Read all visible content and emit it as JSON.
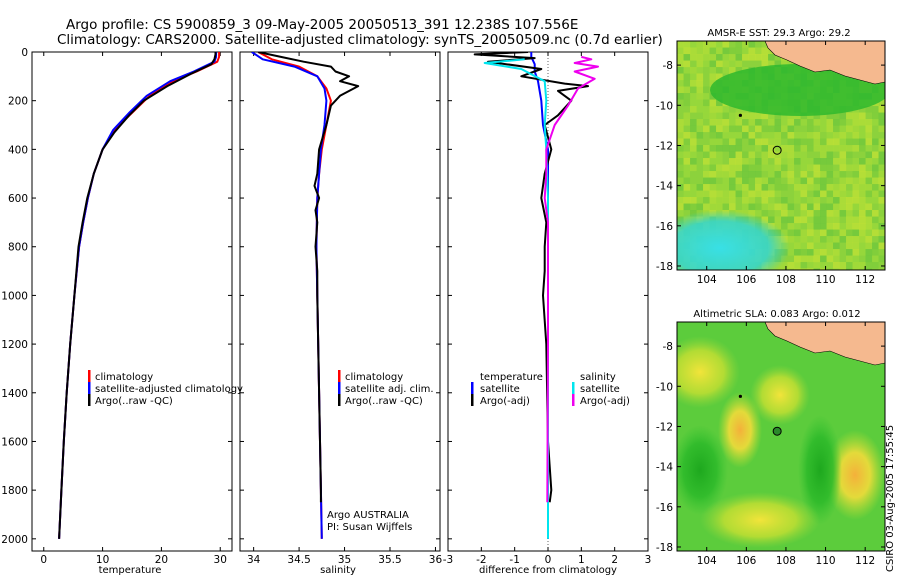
{
  "title": {
    "line1": "Argo profile: CS 5900859_3 09-May-2005 20050513_391 12.238S 107.556E",
    "line2": "Climatology: CARS2000. Satellite-adjusted climatology: synTS_20050509.nc (0.7d earlier)"
  },
  "footer_text": "CSIRO 03-Aug-2005 17:55:45",
  "colors": {
    "climatology": "#ff0000",
    "satellite": "#0000ff",
    "argo": "#000000",
    "sal_sat": "#00e5ee",
    "sal_argo": "#ee00ee",
    "land": "#f5b98f",
    "map_green": "#3cc83c"
  },
  "chart_data": [
    {
      "type": "line",
      "name": "temperature-profile",
      "xlabel": "temperature",
      "xlim": [
        -2,
        32
      ],
      "xticks": [
        0,
        10,
        20,
        30
      ],
      "ylim": [
        2050,
        0
      ],
      "yticks": [
        0,
        200,
        400,
        600,
        800,
        1000,
        1200,
        1400,
        1600,
        1800,
        2000
      ],
      "legend": [
        "climatology",
        "satellite-adjusted climatology",
        "Argo(..raw -QC)"
      ],
      "series": [
        {
          "name": "climatology",
          "color": "#ff0000",
          "points": [
            [
              29.8,
              0
            ],
            [
              29.8,
              20
            ],
            [
              29.5,
              40
            ],
            [
              26,
              80
            ],
            [
              22,
              120
            ],
            [
              18,
              180
            ],
            [
              15,
              250
            ],
            [
              12,
              320
            ],
            [
              10,
              400
            ],
            [
              8.5,
              500
            ],
            [
              7.5,
              600
            ],
            [
              6.7,
              700
            ],
            [
              6,
              800
            ],
            [
              5.2,
              1000
            ],
            [
              4.5,
              1200
            ],
            [
              3.9,
              1400
            ],
            [
              3.4,
              1600
            ],
            [
              3.0,
              1800
            ],
            [
              2.6,
              2000
            ]
          ]
        },
        {
          "name": "satellite",
          "color": "#0000ff",
          "points": [
            [
              29.3,
              0
            ],
            [
              29.3,
              20
            ],
            [
              29.0,
              40
            ],
            [
              25.5,
              80
            ],
            [
              21.5,
              120
            ],
            [
              17.5,
              180
            ],
            [
              14.5,
              250
            ],
            [
              11.8,
              320
            ],
            [
              10,
              400
            ],
            [
              8.5,
              500
            ],
            [
              7.5,
              600
            ],
            [
              6.7,
              700
            ],
            [
              6,
              800
            ],
            [
              5.2,
              1000
            ],
            [
              4.5,
              1200
            ],
            [
              3.9,
              1400
            ],
            [
              3.4,
              1600
            ],
            [
              3.0,
              1800
            ],
            [
              2.6,
              2000
            ]
          ]
        },
        {
          "name": "argo",
          "color": "#000000",
          "points": [
            [
              29.2,
              0
            ],
            [
              29.2,
              10
            ],
            [
              29.0,
              30
            ],
            [
              28.5,
              50
            ],
            [
              25,
              90
            ],
            [
              21,
              140
            ],
            [
              17,
              200
            ],
            [
              14.5,
              260
            ],
            [
              12,
              330
            ],
            [
              10,
              400
            ],
            [
              8.5,
              500
            ],
            [
              7.4,
              600
            ],
            [
              6.6,
              700
            ],
            [
              5.9,
              800
            ],
            [
              5.2,
              1000
            ],
            [
              4.5,
              1200
            ],
            [
              3.9,
              1400
            ],
            [
              3.4,
              1600
            ],
            [
              3.0,
              1800
            ],
            [
              2.6,
              2000
            ]
          ]
        }
      ]
    },
    {
      "type": "line",
      "name": "salinity-profile",
      "xlabel": "salinity",
      "xlim": [
        33.85,
        36.05
      ],
      "xticks": [
        34,
        34.5,
        35,
        35.5,
        36
      ],
      "ylim": [
        2050,
        0
      ],
      "yticks": [
        0,
        200,
        400,
        600,
        800,
        1000,
        1200,
        1400,
        1600,
        1800,
        2000
      ],
      "legend": [
        "climatology",
        "satellite adj. clim.",
        "Argo(..raw -QC)"
      ],
      "annotation": [
        "Argo AUSTRALIA",
        "PI: Susan Wijffels"
      ],
      "series": [
        {
          "name": "climatology",
          "color": "#ff0000",
          "points": [
            [
              34.05,
              0
            ],
            [
              34.2,
              30
            ],
            [
              34.5,
              60
            ],
            [
              34.7,
              100
            ],
            [
              34.8,
              150
            ],
            [
              34.85,
              200
            ],
            [
              34.8,
              300
            ],
            [
              34.75,
              400
            ],
            [
              34.72,
              500
            ],
            [
              34.7,
              600
            ],
            [
              34.69,
              800
            ],
            [
              34.7,
              1000
            ],
            [
              34.71,
              1200
            ],
            [
              34.72,
              1400
            ],
            [
              34.73,
              1600
            ],
            [
              34.74,
              1800
            ],
            [
              34.75,
              2000
            ]
          ]
        },
        {
          "name": "satellite",
          "color": "#0000ff",
          "points": [
            [
              33.98,
              0
            ],
            [
              34.1,
              30
            ],
            [
              34.45,
              60
            ],
            [
              34.7,
              100
            ],
            [
              34.78,
              150
            ],
            [
              34.8,
              200
            ],
            [
              34.78,
              300
            ],
            [
              34.74,
              400
            ],
            [
              34.72,
              500
            ],
            [
              34.7,
              600
            ],
            [
              34.69,
              800
            ],
            [
              34.7,
              1000
            ],
            [
              34.71,
              1200
            ],
            [
              34.72,
              1400
            ],
            [
              34.73,
              1600
            ],
            [
              34.74,
              1800
            ],
            [
              34.75,
              2000
            ]
          ]
        },
        {
          "name": "argo",
          "color": "#000000",
          "points": [
            [
              34.05,
              0
            ],
            [
              34.3,
              20
            ],
            [
              34.55,
              40
            ],
            [
              34.85,
              60
            ],
            [
              34.9,
              80
            ],
            [
              35.05,
              100
            ],
            [
              34.95,
              120
            ],
            [
              35.15,
              140
            ],
            [
              34.95,
              180
            ],
            [
              34.85,
              220
            ],
            [
              34.8,
              300
            ],
            [
              34.72,
              400
            ],
            [
              34.7,
              500
            ],
            [
              34.67,
              550
            ],
            [
              34.72,
              600
            ],
            [
              34.68,
              650
            ],
            [
              34.7,
              700
            ],
            [
              34.68,
              800
            ],
            [
              34.7,
              900
            ],
            [
              34.7,
              1000
            ],
            [
              34.71,
              1200
            ],
            [
              34.72,
              1400
            ],
            [
              34.73,
              1600
            ],
            [
              34.74,
              1800
            ],
            [
              34.74,
              1850
            ]
          ]
        }
      ]
    },
    {
      "type": "line",
      "name": "difference-profile",
      "xlabel": "difference from climatology",
      "xlim": [
        -3,
        3
      ],
      "xticks": [
        -3,
        -2,
        -1,
        0,
        1,
        2,
        3
      ],
      "ylim": [
        2050,
        0
      ],
      "yticks": [
        0,
        200,
        400,
        600,
        800,
        1000,
        1200,
        1400,
        1600,
        1800,
        2000
      ],
      "legend_left_title": "temperature",
      "legend_left": [
        "satellite",
        "Argo(-adj)"
      ],
      "legend_right_title": "salinity",
      "legend_right": [
        "satellite",
        "Argo(-adj)"
      ],
      "series": [
        {
          "name": "temp-satellite",
          "color": "#0000ff",
          "points": [
            [
              -0.5,
              0
            ],
            [
              -0.5,
              20
            ],
            [
              -0.4,
              50
            ],
            [
              -0.4,
              80
            ],
            [
              -0.3,
              120
            ],
            [
              -0.2,
              200
            ],
            [
              -0.15,
              300
            ],
            [
              0,
              400
            ],
            [
              0,
              2000
            ]
          ]
        },
        {
          "name": "temp-argo",
          "color": "#000000",
          "points": [
            [
              -0.6,
              0
            ],
            [
              -2.2,
              10
            ],
            [
              -0.4,
              25
            ],
            [
              -1.8,
              40
            ],
            [
              -0.2,
              70
            ],
            [
              -0.8,
              100
            ],
            [
              0.5,
              130
            ],
            [
              1.2,
              140
            ],
            [
              0.3,
              160
            ],
            [
              0.7,
              200
            ],
            [
              0.3,
              260
            ],
            [
              -0.1,
              300
            ],
            [
              0.1,
              400
            ],
            [
              -0.1,
              500
            ],
            [
              -0.2,
              600
            ],
            [
              -0.05,
              700
            ],
            [
              -0.1,
              800
            ],
            [
              -0.1,
              900
            ],
            [
              -0.15,
              1000
            ],
            [
              -0.05,
              1200
            ],
            [
              0,
              1600
            ],
            [
              0.1,
              1800
            ],
            [
              0.05,
              1850
            ]
          ]
        },
        {
          "name": "sal-satellite",
          "color": "#00e5ee",
          "points": [
            [
              -0.7,
              30
            ],
            [
              -1.9,
              45
            ],
            [
              -0.8,
              70
            ],
            [
              -0.1,
              120
            ],
            [
              -0.05,
              200
            ],
            [
              -0.1,
              300
            ],
            [
              -0.05,
              400
            ],
            [
              0,
              600
            ],
            [
              0,
              1000
            ],
            [
              0,
              1400
            ],
            [
              0,
              2000
            ]
          ]
        },
        {
          "name": "sal-argo",
          "color": "#ee00ee",
          "points": [
            [
              1.0,
              20
            ],
            [
              1.3,
              30
            ],
            [
              0.8,
              45
            ],
            [
              1.5,
              60
            ],
            [
              0.8,
              80
            ],
            [
              1.4,
              110
            ],
            [
              0.9,
              150
            ],
            [
              0.6,
              220
            ],
            [
              0.2,
              300
            ],
            [
              -0.05,
              400
            ],
            [
              -0.05,
              500
            ],
            [
              -0.1,
              600
            ],
            [
              0,
              700
            ],
            [
              0,
              1000
            ],
            [
              0,
              1200
            ],
            [
              -0.02,
              1850
            ]
          ]
        }
      ]
    },
    {
      "type": "heatmap",
      "name": "sst-map",
      "title": "AMSR-E SST: 29.3 Argo: 29.2",
      "xlim": [
        102.5,
        113
      ],
      "ylim": [
        -18.2,
        -6.8
      ],
      "xticks": [
        104,
        106,
        108,
        110,
        112
      ],
      "yticks": [
        -8,
        -10,
        -12,
        -14,
        -16,
        -18
      ],
      "argo_position": [
        107.556,
        -12.238
      ],
      "prev_position": [
        105.7,
        -10.5
      ]
    },
    {
      "type": "heatmap",
      "name": "sla-map",
      "title": "Altimetric SLA: 0.083 Argo: 0.012",
      "xlim": [
        102.5,
        113
      ],
      "ylim": [
        -18.2,
        -6.8
      ],
      "xticks": [
        104,
        106,
        108,
        110,
        112
      ],
      "yticks": [
        -8,
        -10,
        -12,
        -14,
        -16,
        -18
      ],
      "argo_position": [
        107.556,
        -12.238
      ],
      "prev_position": [
        105.7,
        -10.5
      ]
    }
  ]
}
